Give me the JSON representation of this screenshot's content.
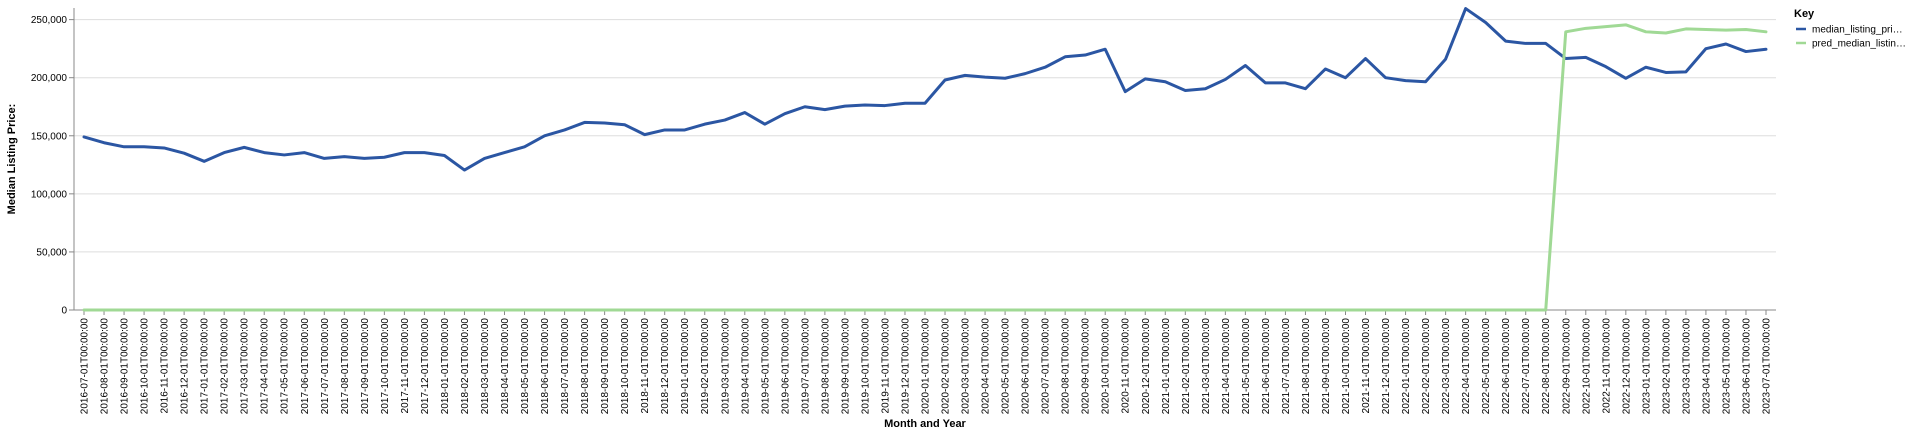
{
  "chart_data": {
    "type": "line",
    "title": "",
    "xlabel": "Month and Year",
    "ylabel": "Median Listing Price:",
    "ylim": [
      0,
      260000
    ],
    "y_ticks": [
      0,
      50000,
      100000,
      150000,
      200000,
      250000
    ],
    "y_tick_labels": [
      "0",
      "50,000",
      "100,000",
      "150,000",
      "200,000",
      "250,000"
    ],
    "grid": true,
    "legend": {
      "title": "Key",
      "placement": "top-right"
    },
    "x": [
      "2016-07-01T00:00:00",
      "2016-08-01T00:00:00",
      "2016-09-01T00:00:00",
      "2016-10-01T00:00:00",
      "2016-11-01T00:00:00",
      "2016-12-01T00:00:00",
      "2017-01-01T00:00:00",
      "2017-02-01T00:00:00",
      "2017-03-01T00:00:00",
      "2017-04-01T00:00:00",
      "2017-05-01T00:00:00",
      "2017-06-01T00:00:00",
      "2017-07-01T00:00:00",
      "2017-08-01T00:00:00",
      "2017-09-01T00:00:00",
      "2017-10-01T00:00:00",
      "2017-11-01T00:00:00",
      "2017-12-01T00:00:00",
      "2018-01-01T00:00:00",
      "2018-02-01T00:00:00",
      "2018-03-01T00:00:00",
      "2018-04-01T00:00:00",
      "2018-05-01T00:00:00",
      "2018-06-01T00:00:00",
      "2018-07-01T00:00:00",
      "2018-08-01T00:00:00",
      "2018-09-01T00:00:00",
      "2018-10-01T00:00:00",
      "2018-11-01T00:00:00",
      "2018-12-01T00:00:00",
      "2019-01-01T00:00:00",
      "2019-02-01T00:00:00",
      "2019-03-01T00:00:00",
      "2019-04-01T00:00:00",
      "2019-05-01T00:00:00",
      "2019-06-01T00:00:00",
      "2019-07-01T00:00:00",
      "2019-08-01T00:00:00",
      "2019-09-01T00:00:00",
      "2019-10-01T00:00:00",
      "2019-11-01T00:00:00",
      "2019-12-01T00:00:00",
      "2020-01-01T00:00:00",
      "2020-02-01T00:00:00",
      "2020-03-01T00:00:00",
      "2020-04-01T00:00:00",
      "2020-05-01T00:00:00",
      "2020-06-01T00:00:00",
      "2020-07-01T00:00:00",
      "2020-08-01T00:00:00",
      "2020-09-01T00:00:00",
      "2020-10-01T00:00:00",
      "2020-11-01T00:00:00",
      "2020-12-01T00:00:00",
      "2021-01-01T00:00:00",
      "2021-02-01T00:00:00",
      "2021-03-01T00:00:00",
      "2021-04-01T00:00:00",
      "2021-05-01T00:00:00",
      "2021-06-01T00:00:00",
      "2021-07-01T00:00:00",
      "2021-08-01T00:00:00",
      "2021-09-01T00:00:00",
      "2021-10-01T00:00:00",
      "2021-11-01T00:00:00",
      "2021-12-01T00:00:00",
      "2022-01-01T00:00:00",
      "2022-02-01T00:00:00",
      "2022-03-01T00:00:00",
      "2022-04-01T00:00:00",
      "2022-05-01T00:00:00",
      "2022-06-01T00:00:00",
      "2022-07-01T00:00:00",
      "2022-08-01T00:00:00",
      "2022-09-01T00:00:00",
      "2022-10-01T00:00:00",
      "2022-11-01T00:00:00",
      "2022-12-01T00:00:00",
      "2023-01-01T00:00:00",
      "2023-02-01T00:00:00",
      "2023-03-01T00:00:00",
      "2023-04-01T00:00:00",
      "2023-05-01T00:00:00",
      "2023-06-01T00:00:00",
      "2023-07-01T00:00:00"
    ],
    "series": [
      {
        "name": "median_listing_pri…",
        "color": "#2b56a3",
        "values": [
          149000,
          144000,
          140500,
          140500,
          139500,
          135000,
          128000,
          135500,
          140000,
          135500,
          133500,
          135500,
          130500,
          132000,
          130500,
          131500,
          135500,
          135500,
          133000,
          120500,
          130500,
          135500,
          140500,
          150000,
          155000,
          161500,
          161000,
          159500,
          151000,
          155000,
          155000,
          160000,
          163500,
          170000,
          160000,
          169000,
          175000,
          172500,
          175500,
          176500,
          176000,
          178000,
          178000,
          198000,
          202000,
          200500,
          199500,
          203500,
          209000,
          218000,
          219500,
          224500,
          188000,
          199000,
          196500,
          189000,
          190500,
          198500,
          210500,
          195500,
          195500,
          190500,
          207500,
          200000,
          216500,
          200000,
          197500,
          196500,
          216000,
          259500,
          247500,
          231500,
          229500,
          229500,
          216500,
          217500,
          209500,
          199500,
          209000,
          204500,
          205000,
          225000,
          229000,
          222500,
          224500
        ]
      },
      {
        "name": "pred_median_listin…",
        "color": "#a0d995",
        "values": [
          0,
          0,
          0,
          0,
          0,
          0,
          0,
          0,
          0,
          0,
          0,
          0,
          0,
          0,
          0,
          0,
          0,
          0,
          0,
          0,
          0,
          0,
          0,
          0,
          0,
          0,
          0,
          0,
          0,
          0,
          0,
          0,
          0,
          0,
          0,
          0,
          0,
          0,
          0,
          0,
          0,
          0,
          0,
          0,
          0,
          0,
          0,
          0,
          0,
          0,
          0,
          0,
          0,
          0,
          0,
          0,
          0,
          0,
          0,
          0,
          0,
          0,
          0,
          0,
          0,
          0,
          0,
          0,
          0,
          0,
          0,
          0,
          0,
          0,
          239500,
          242500,
          244000,
          245500,
          239500,
          238500,
          242000,
          241500,
          241000,
          241500,
          239500
        ]
      }
    ]
  }
}
